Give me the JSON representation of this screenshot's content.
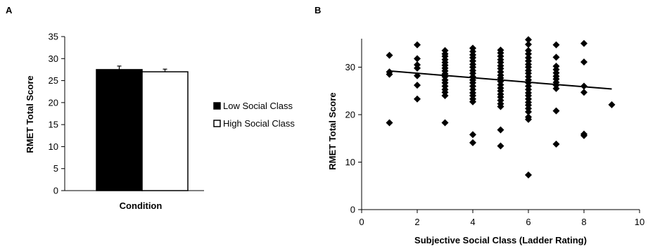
{
  "panels": {
    "a_label": "A",
    "b_label": "B"
  },
  "chart_data": [
    {
      "type": "bar",
      "panel": "A",
      "categories": [
        "Condition"
      ],
      "xlabel": "Condition",
      "ylabel": "RMET Total Score",
      "ylim": [
        0,
        35
      ],
      "yticks": [
        0,
        5,
        10,
        15,
        20,
        25,
        30,
        35
      ],
      "series": [
        {
          "name": "Low Social Class",
          "values": [
            27.5
          ],
          "error": [
            0.8
          ],
          "color": "#000000"
        },
        {
          "name": "High Social Class",
          "values": [
            27.0
          ],
          "error": [
            0.6
          ],
          "color": "#ffffff"
        }
      ],
      "legend": "right",
      "grid": false
    },
    {
      "type": "scatter",
      "panel": "B",
      "xlabel": "Subjective Social Class (Ladder Rating)",
      "ylabel": "RMET Total Score",
      "xlim": [
        0,
        10
      ],
      "ylim": [
        0,
        36
      ],
      "xticks": [
        0,
        2,
        4,
        6,
        8,
        10
      ],
      "yticks": [
        0,
        10,
        20,
        30
      ],
      "marker": "diamond",
      "trendline": {
        "x": [
          1,
          9
        ],
        "y": [
          29.2,
          25.4
        ]
      },
      "grid": false,
      "points": [
        [
          1,
          32.5
        ],
        [
          1,
          28.5
        ],
        [
          1,
          29
        ],
        [
          1,
          18.3
        ],
        [
          2,
          34.7
        ],
        [
          2,
          31.8
        ],
        [
          2,
          30.5
        ],
        [
          2,
          29.8
        ],
        [
          2,
          28.2
        ],
        [
          2,
          26.2
        ],
        [
          2,
          23.3
        ],
        [
          3,
          33.5
        ],
        [
          3,
          32.8
        ],
        [
          3,
          32.3
        ],
        [
          3,
          31.6
        ],
        [
          3,
          31
        ],
        [
          3,
          30.4
        ],
        [
          3,
          29.8
        ],
        [
          3,
          29.2
        ],
        [
          3,
          28.6
        ],
        [
          3,
          28
        ],
        [
          3,
          27.3
        ],
        [
          3,
          26.7
        ],
        [
          3,
          26
        ],
        [
          3,
          25.3
        ],
        [
          3,
          24.7
        ],
        [
          3,
          24
        ],
        [
          3,
          18.3
        ],
        [
          4,
          34
        ],
        [
          4,
          33.3
        ],
        [
          4,
          32.6
        ],
        [
          4,
          32
        ],
        [
          4,
          31.3
        ],
        [
          4,
          30.6
        ],
        [
          4,
          30
        ],
        [
          4,
          29.3
        ],
        [
          4,
          28.7
        ],
        [
          4,
          28
        ],
        [
          4,
          27.3
        ],
        [
          4,
          26.7
        ],
        [
          4,
          26
        ],
        [
          4,
          25.3
        ],
        [
          4,
          24.6
        ],
        [
          4,
          24
        ],
        [
          4,
          23.3
        ],
        [
          4,
          22.7
        ],
        [
          4,
          15.8
        ],
        [
          4,
          14.1
        ],
        [
          5,
          33.6
        ],
        [
          5,
          33
        ],
        [
          5,
          32.3
        ],
        [
          5,
          31.6
        ],
        [
          5,
          31
        ],
        [
          5,
          30.3
        ],
        [
          5,
          29.7
        ],
        [
          5,
          29
        ],
        [
          5,
          28.3
        ],
        [
          5,
          27.7
        ],
        [
          5,
          27
        ],
        [
          5,
          26.3
        ],
        [
          5,
          25.6
        ],
        [
          5,
          25
        ],
        [
          5,
          24.3
        ],
        [
          5,
          23.7
        ],
        [
          5,
          23
        ],
        [
          5,
          22.3
        ],
        [
          5,
          21.7
        ],
        [
          5,
          16.8
        ],
        [
          5,
          13.4
        ],
        [
          6,
          35.8
        ],
        [
          6,
          34.8
        ],
        [
          6,
          33.5
        ],
        [
          6,
          32.8
        ],
        [
          6,
          32
        ],
        [
          6,
          31.3
        ],
        [
          6,
          30.6
        ],
        [
          6,
          30
        ],
        [
          6,
          29.3
        ],
        [
          6,
          28.7
        ],
        [
          6,
          28
        ],
        [
          6,
          27.3
        ],
        [
          6,
          26.7
        ],
        [
          6,
          26
        ],
        [
          6,
          25.3
        ],
        [
          6,
          24.6
        ],
        [
          6,
          24
        ],
        [
          6,
          23.3
        ],
        [
          6,
          22.6
        ],
        [
          6,
          22
        ],
        [
          6,
          21.3
        ],
        [
          6,
          20.6
        ],
        [
          6,
          19.5
        ],
        [
          6,
          19
        ],
        [
          6,
          7.3
        ],
        [
          7,
          34.7
        ],
        [
          7,
          32.1
        ],
        [
          7,
          30.2
        ],
        [
          7,
          29.5
        ],
        [
          7,
          28.8
        ],
        [
          7,
          28.1
        ],
        [
          7,
          27.5
        ],
        [
          7,
          26.8
        ],
        [
          7,
          26.2
        ],
        [
          7,
          25.5
        ],
        [
          7,
          20.8
        ],
        [
          7,
          13.8
        ],
        [
          8,
          35
        ],
        [
          8,
          31.1
        ],
        [
          8,
          26
        ],
        [
          8,
          24.7
        ],
        [
          8,
          15.9
        ],
        [
          8,
          15.6
        ],
        [
          9,
          22.1
        ]
      ]
    }
  ]
}
